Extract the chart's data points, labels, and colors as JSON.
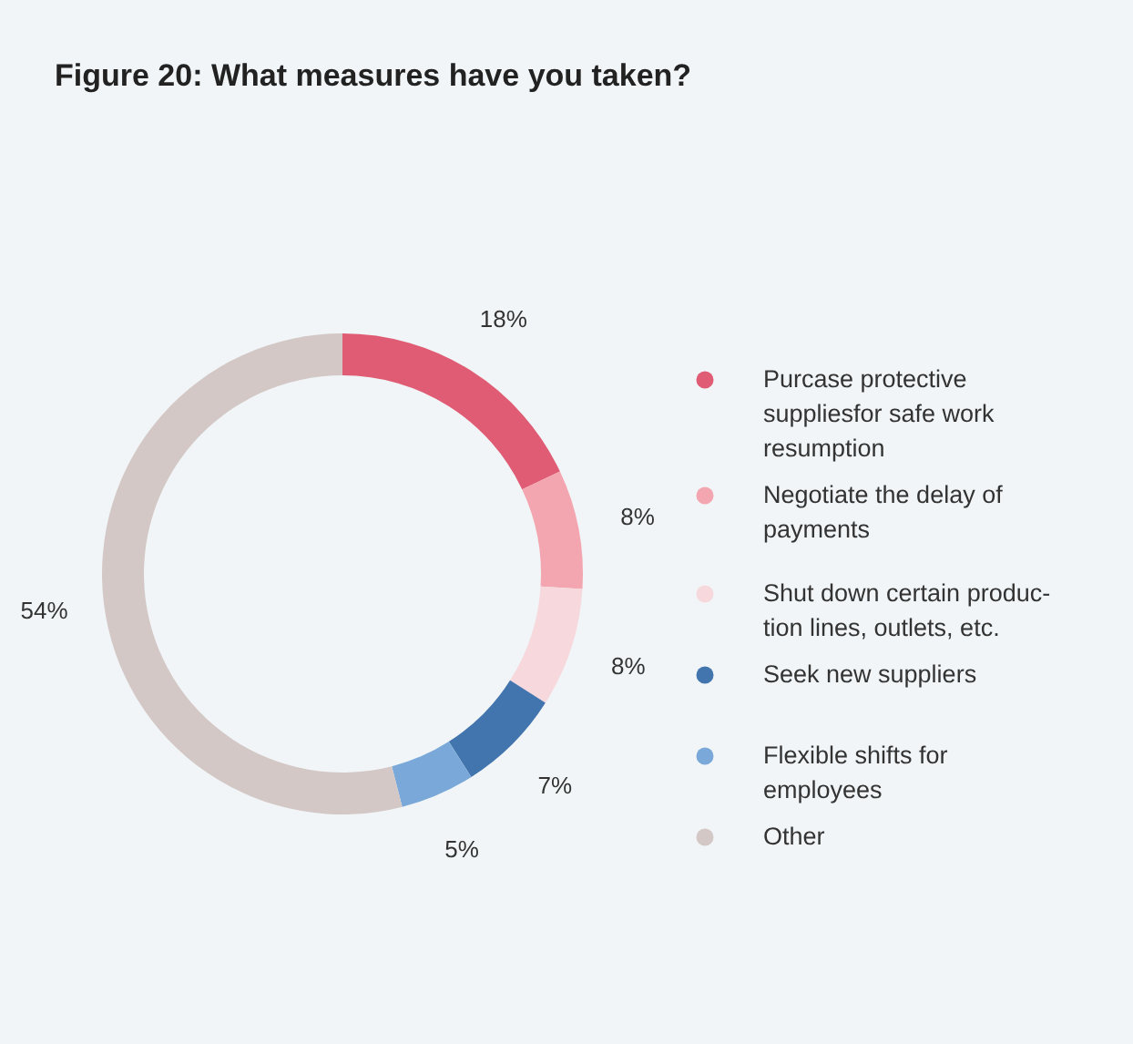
{
  "chart_data": {
    "type": "donut",
    "title": "Figure 20: What measures have you taken?",
    "categories": [
      "Purcase protective\nsuppliesfor safe work\nresumption",
      "Negotiate the delay of\npayments",
      "Shut down certain produc-\ntion lines, outlets, etc.",
      "Seek new suppliers",
      "Flexible shifts for\nemployees",
      "Other"
    ],
    "values": [
      18,
      8,
      8,
      7,
      5,
      54
    ],
    "value_labels": [
      "18%",
      "8%",
      "8%",
      "7%",
      "5%",
      "54%"
    ],
    "colors": [
      "#e05c74",
      "#f4a6b0",
      "#f7d8dc",
      "#4274ae",
      "#7aa9d9",
      "#d3c8c6"
    ],
    "legend": "right"
  }
}
